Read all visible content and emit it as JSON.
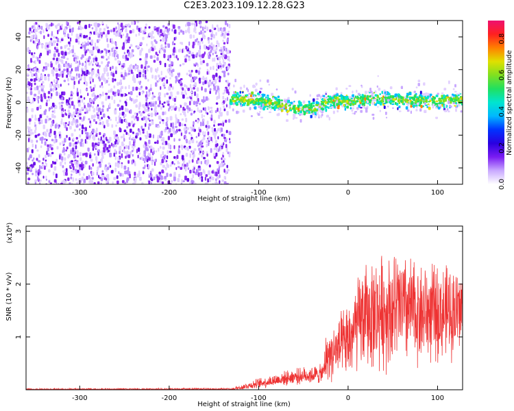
{
  "title": "C2E3.2023.109.12.28.G23",
  "chart_data": [
    {
      "type": "heatmap",
      "name": "spectrogram",
      "xlabel": "Height of straight line (km)",
      "ylabel": "Frequency (Hz)",
      "xlim": [
        -360,
        128
      ],
      "ylim": [
        -50,
        50
      ],
      "x_ticks": [
        -300,
        -200,
        -100,
        0,
        100
      ],
      "x_tick_labels": [
        "-300",
        "-200",
        "-100",
        "0",
        "100"
      ],
      "y_ticks": [
        -40,
        -20,
        0,
        20,
        40
      ],
      "y_tick_labels": [
        "-40",
        "-20",
        "0",
        "20",
        "40"
      ],
      "grid": false,
      "colorbar": {
        "label": "Normalized spectral amplitude",
        "range": [
          0.0,
          0.9
        ],
        "ticks": [
          0.0,
          0.2,
          0.4,
          0.6,
          0.8
        ],
        "tick_labels": [
          "0.0",
          "0.2",
          "0.4",
          "0.6",
          "0.8"
        ],
        "colormap": [
          "#ffffff",
          "#c9a9ff",
          "#7a1cf2",
          "#2a00e0",
          "#0033ff",
          "#00b8ff",
          "#00e5d0",
          "#20e060",
          "#80e020",
          "#e0e000",
          "#ff8000",
          "#ff2020",
          "#ee1170"
        ]
      },
      "regions": [
        {
          "name": "noise",
          "x_range": [
            -360,
            -133
          ],
          "y_range": [
            -50,
            50
          ],
          "amplitude": 0.15
        },
        {
          "name": "signal_band",
          "x_range": [
            -133,
            128
          ],
          "amplitude": 0.45,
          "center_track_x": [
            -130,
            -100,
            -80,
            -60,
            -40,
            -20,
            0,
            20,
            40,
            60,
            80,
            100,
            128
          ],
          "center_track_y": [
            3,
            2,
            0,
            -3,
            -3,
            2,
            1,
            3,
            3,
            2,
            2,
            1,
            3
          ],
          "half_width_hz": 6
        }
      ]
    },
    {
      "type": "line",
      "name": "snr",
      "xlabel": "Height of straight line (km)",
      "ylabel": "SNR (10 * v/v)",
      "y_multiplier": "(x10⁴)",
      "xlim": [
        -360,
        128
      ],
      "ylim": [
        0,
        3.1
      ],
      "x_ticks": [
        -300,
        -200,
        -100,
        0,
        100
      ],
      "x_tick_labels": [
        "-300",
        "-200",
        "-100",
        "0",
        "100"
      ],
      "y_ticks": [
        1,
        2,
        3
      ],
      "y_tick_labels": [
        "1",
        "2",
        "3"
      ],
      "grid": false,
      "series": [
        {
          "name": "SNR",
          "color": "#ee3333",
          "envelope_x": [
            -360,
            -130,
            -100,
            -60,
            -28,
            -25,
            0,
            15,
            40,
            60,
            80,
            100,
            128
          ],
          "envelope_mean": [
            0.01,
            0.01,
            0.12,
            0.25,
            0.3,
            0.6,
            0.9,
            1.35,
            1.5,
            1.55,
            1.45,
            1.45,
            1.5
          ],
          "envelope_spread": [
            0.01,
            0.02,
            0.08,
            0.12,
            0.15,
            0.35,
            0.6,
            0.8,
            0.9,
            0.9,
            0.8,
            0.75,
            0.7
          ]
        }
      ]
    }
  ]
}
